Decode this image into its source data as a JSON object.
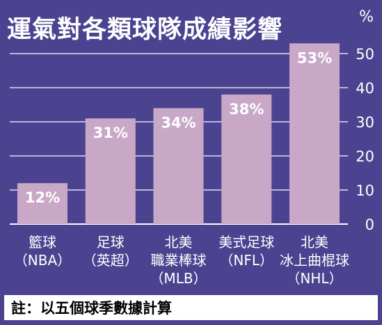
{
  "title": "運氣對各類球隊成績影響",
  "unit": "%",
  "note": "註：以五個球季數據計算",
  "colors": {
    "background": "#4b4390",
    "bar": "#c9a8c7",
    "text": "#ffffff",
    "grid": "#ffffff"
  },
  "chart_data": {
    "type": "bar",
    "title": "運氣對各類球隊成績影響",
    "ylabel": "%",
    "xlabel": "",
    "ylim": [
      0,
      50
    ],
    "yticks": [
      0,
      10,
      20,
      30,
      40,
      50
    ],
    "grid": true,
    "categories": [
      [
        "籃球",
        "（NBA）"
      ],
      [
        "足球",
        "（英超）"
      ],
      [
        "北美",
        "職業棒球",
        "（MLB）"
      ],
      [
        "美式足球",
        "（NFL）"
      ],
      [
        "北美",
        "冰上曲棍球",
        "（NHL）"
      ]
    ],
    "values": [
      12,
      31,
      34,
      38,
      53
    ],
    "value_labels": [
      "12%",
      "31%",
      "34%",
      "38%",
      "53%"
    ]
  }
}
